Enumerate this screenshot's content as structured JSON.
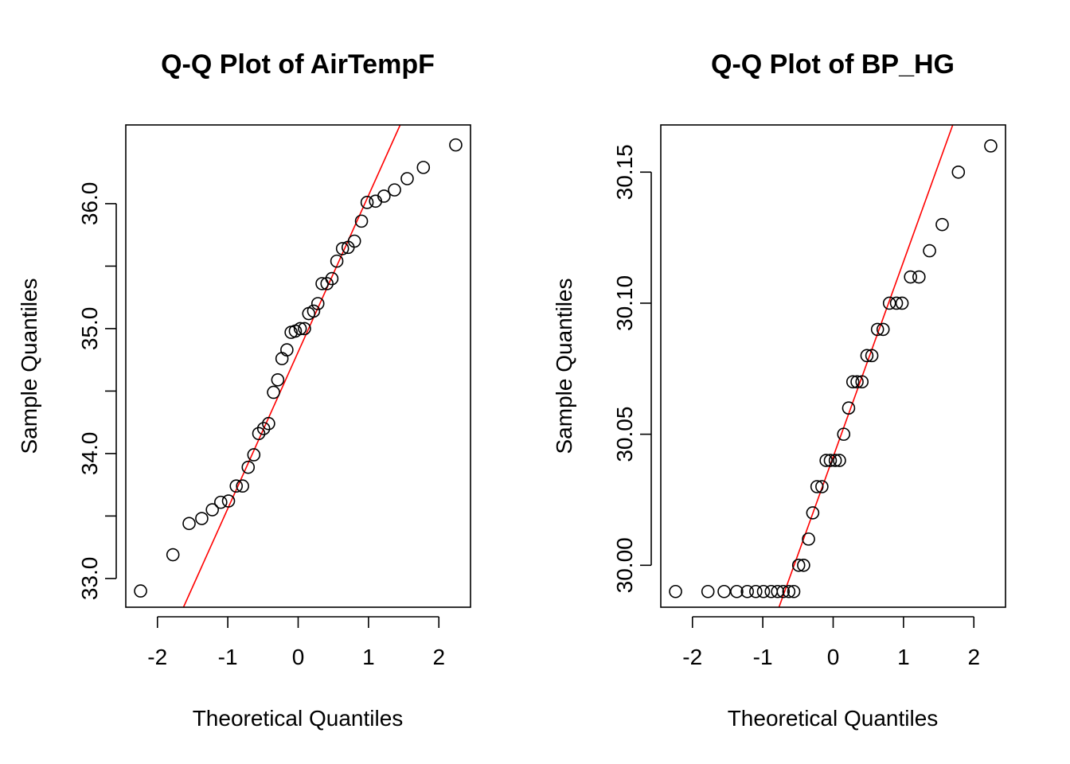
{
  "chart_data": [
    {
      "type": "scatter",
      "title": "Q-Q Plot of AirTempF",
      "xlabel": "Theoretical Quantiles",
      "ylabel": "Sample Quantiles",
      "xlim": [
        -2.45,
        2.45
      ],
      "ylim": [
        32.77,
        36.63
      ],
      "x_ticks": [
        -2,
        -1,
        0,
        1,
        2
      ],
      "x_tick_labels": [
        "-2",
        "-1",
        "0",
        "1",
        "2"
      ],
      "y_ticks": [
        33.0,
        33.5,
        34.0,
        34.5,
        35.0,
        35.5,
        36.0
      ],
      "y_tick_labels": [
        "33.0",
        "",
        "34.0",
        "",
        "35.0",
        "",
        "36.0"
      ],
      "grid": false,
      "point_color": "#000000",
      "line_color": "#ff0000",
      "reference_line": {
        "x": [
          -1.63,
          1.45
        ],
        "y": [
          32.77,
          36.63
        ]
      },
      "points": {
        "x": [
          -2.24,
          -1.78,
          -1.55,
          -1.37,
          -1.22,
          -1.1,
          -0.99,
          -0.88,
          -0.79,
          -0.71,
          -0.63,
          -0.56,
          -0.49,
          -0.42,
          -0.35,
          -0.29,
          -0.23,
          -0.16,
          -0.1,
          -0.04,
          0.03,
          0.09,
          0.15,
          0.22,
          0.28,
          0.34,
          0.41,
          0.48,
          0.55,
          0.63,
          0.71,
          0.8,
          0.9,
          0.98,
          1.1,
          1.22,
          1.37,
          1.55,
          1.78,
          2.24
        ],
        "y": [
          32.9,
          33.19,
          33.44,
          33.48,
          33.55,
          33.61,
          33.62,
          33.74,
          33.74,
          33.89,
          33.99,
          34.16,
          34.2,
          34.24,
          34.49,
          34.59,
          34.76,
          34.83,
          34.97,
          34.98,
          35.0,
          35.0,
          35.12,
          35.14,
          35.2,
          35.36,
          35.36,
          35.4,
          35.54,
          35.64,
          35.65,
          35.7,
          35.86,
          36.01,
          36.02,
          36.06,
          36.11,
          36.2,
          36.29,
          36.47
        ]
      }
    },
    {
      "type": "scatter",
      "title": "Q-Q Plot of BP_HG",
      "xlabel": "Theoretical Quantiles",
      "ylabel": "Sample Quantiles",
      "xlim": [
        -2.45,
        2.45
      ],
      "ylim": [
        29.984,
        30.168
      ],
      "x_ticks": [
        -2,
        -1,
        0,
        1,
        2
      ],
      "x_tick_labels": [
        "-2",
        "-1",
        "0",
        "1",
        "2"
      ],
      "y_ticks": [
        30.0,
        30.05,
        30.1,
        30.15
      ],
      "y_tick_labels": [
        "30.00",
        "30.05",
        "30.10",
        "30.15"
      ],
      "grid": false,
      "point_color": "#000000",
      "line_color": "#ff0000",
      "reference_line": {
        "x": [
          -0.77,
          1.7
        ],
        "y": [
          29.984,
          30.168
        ]
      },
      "points": {
        "x": [
          -2.24,
          -1.78,
          -1.55,
          -1.37,
          -1.22,
          -1.1,
          -0.99,
          -0.88,
          -0.79,
          -0.71,
          -0.63,
          -0.56,
          -0.49,
          -0.42,
          -0.35,
          -0.29,
          -0.23,
          -0.16,
          -0.1,
          -0.04,
          0.03,
          0.09,
          0.15,
          0.22,
          0.28,
          0.34,
          0.41,
          0.48,
          0.55,
          0.63,
          0.71,
          0.8,
          0.9,
          0.98,
          1.1,
          1.22,
          1.37,
          1.55,
          1.78,
          2.24
        ],
        "y": [
          29.99,
          29.99,
          29.99,
          29.99,
          29.99,
          29.99,
          29.99,
          29.99,
          29.99,
          29.99,
          29.99,
          29.99,
          30.0,
          30.0,
          30.01,
          30.02,
          30.03,
          30.03,
          30.04,
          30.04,
          30.04,
          30.04,
          30.05,
          30.06,
          30.07,
          30.07,
          30.07,
          30.08,
          30.08,
          30.09,
          30.09,
          30.1,
          30.1,
          30.1,
          30.11,
          30.11,
          30.12,
          30.13,
          30.15,
          30.16
        ]
      }
    }
  ]
}
